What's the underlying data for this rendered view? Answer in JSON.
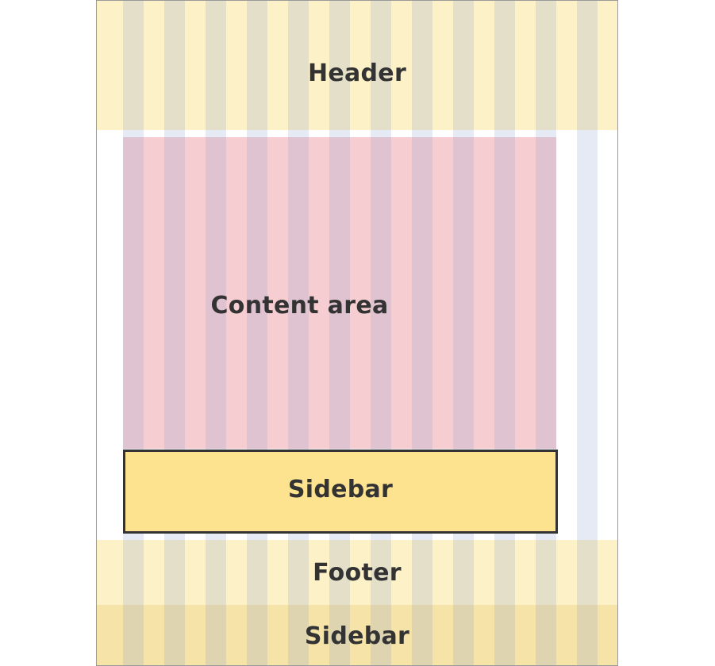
{
  "regions": {
    "header": "Header",
    "content": "Content area",
    "sidebar_main": "Sidebar",
    "footer": "Footer",
    "sidebar_bottom": "Sidebar"
  },
  "grid": {
    "columns": 12,
    "column_color": "#8ca0cd"
  },
  "colors": {
    "header": "#fdf1c7",
    "content": "#f6cdd1",
    "sidebar_main": "#fde38f",
    "footer": "#fdf1c7",
    "sidebar_bottom": "#f6e3a8",
    "border": "#333333"
  }
}
